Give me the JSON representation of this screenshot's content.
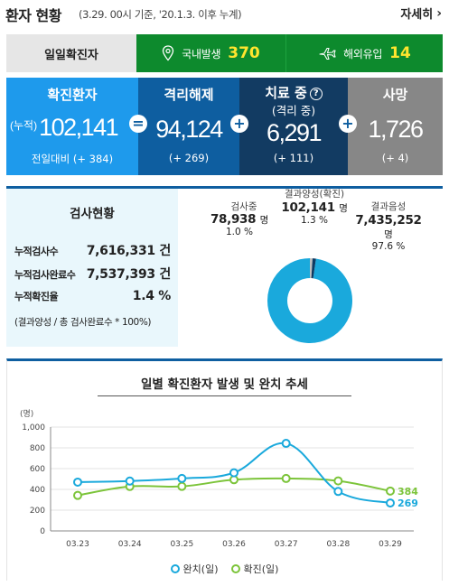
{
  "header": {
    "title": "환자 현황",
    "subtitle": "(3.29. 00시 기준, '20.1.3. 이후 누계)",
    "more_label": "자세히"
  },
  "daily": {
    "label": "일일확진자",
    "domestic_label": "국내발생",
    "domestic_value": "370",
    "abroad_label": "해외유입",
    "abroad_value": "14"
  },
  "stats": {
    "confirmed": {
      "title": "확진환자",
      "prefix": "(누적)",
      "value": "102,141",
      "change": "전일대비 (+ 384)"
    },
    "released": {
      "title": "격리해제",
      "value": "94,124",
      "change": "(+ 269)"
    },
    "treating": {
      "title": "치료 중",
      "help": "?",
      "sub": "(격리 중)",
      "value": "6,291",
      "change": "(+ 111)"
    },
    "deaths": {
      "title": "사망",
      "value": "1,726",
      "change": "(+ 4)"
    },
    "op_equal": "=",
    "op_plus": "+"
  },
  "tests": {
    "title": "검사현황",
    "rows": [
      {
        "label": "누적검사수",
        "value": "7,616,331 건"
      },
      {
        "label": "누적검사완료수",
        "value": "7,537,393 건"
      },
      {
        "label": "누적확진율",
        "value": "1.4 %"
      }
    ],
    "note": "(결과양성 / 총 검사완료수 * 100%)",
    "pie": {
      "testing": {
        "label": "검사중",
        "value": "78,938",
        "unit": "명",
        "pct": "1.0 %",
        "fraction": 0.01
      },
      "positive": {
        "label": "결과양성(확진)",
        "value": "102,141",
        "unit": "명",
        "pct": "1.3 %",
        "fraction": 0.013
      },
      "negative": {
        "label": "결과음성",
        "value": "7,435,252",
        "unit": "명",
        "pct": "97.6 %",
        "fraction": 0.976
      },
      "colors": {
        "negative": "#1aa9dc",
        "testing": "#bfbfbf",
        "positive": "#0e3a62"
      }
    }
  },
  "trend": {
    "title": "일별 확진환자 발생 및 완치 추세",
    "legend": {
      "recovered": "완치(일)",
      "confirmed": "확진(일)"
    },
    "colors": {
      "recovered": "#1aa9dc",
      "confirmed": "#7cc43a"
    }
  },
  "chart_data": {
    "type": "line",
    "title": "일별 확진환자 발생 및 완치 추세",
    "ylabel": "(명)",
    "categories": [
      "03.23",
      "03.24",
      "03.25",
      "03.26",
      "03.27",
      "03.28",
      "03.29"
    ],
    "ylim": [
      0,
      1000
    ],
    "yticks": [
      "0",
      "200",
      "400",
      "600",
      "800",
      "1,000"
    ],
    "grid": true,
    "legend_position": "bottom",
    "series": [
      {
        "name": "완치(일)",
        "values": [
          470,
          480,
          505,
          560,
          843,
          380,
          269
        ],
        "end_label": "269"
      },
      {
        "name": "확진(일)",
        "values": [
          342,
          428,
          429,
          493,
          505,
          482,
          384
        ],
        "end_label": "384"
      }
    ]
  }
}
